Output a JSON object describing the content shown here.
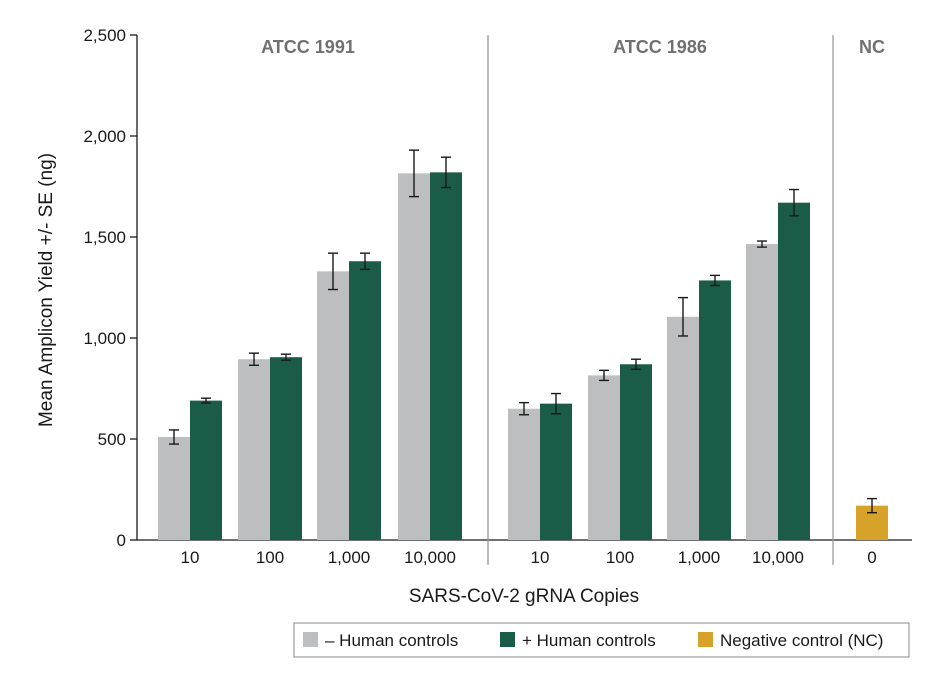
{
  "chart_data": {
    "type": "bar",
    "ylabel": "Mean Amplicon Yield +/- SE (ng)",
    "xlabel": "SARS-CoV-2 gRNA Copies",
    "ylim": [
      0,
      2500
    ],
    "yticks": [
      0,
      500,
      1000,
      1500,
      2000,
      2500
    ],
    "ytick_labels": [
      "0",
      "500",
      "1,000",
      "1,500",
      "2,000",
      "2,500"
    ],
    "grid": false,
    "legend_position": "bottom-right",
    "colors": {
      "minus_human": "#bdbec0",
      "plus_human": "#1b5c48",
      "negative": "#d7a22a",
      "separator": "#9a9a9a",
      "group_title": "#707070"
    },
    "legend": [
      {
        "key": "minus_human",
        "label": "– Human controls"
      },
      {
        "key": "plus_human",
        "label": "+ Human controls"
      },
      {
        "key": "negative",
        "label": "Negative control (NC)"
      }
    ],
    "groups": [
      {
        "title": "ATCC 1991",
        "categories": [
          "10",
          "100",
          "1,000",
          "10,000"
        ],
        "series": [
          {
            "key": "minus_human",
            "values": [
              510,
              895,
              1330,
              1815
            ],
            "errors": [
              35,
              30,
              90,
              115
            ]
          },
          {
            "key": "plus_human",
            "values": [
              690,
              905,
              1380,
              1820
            ],
            "errors": [
              12,
              15,
              40,
              75
            ]
          }
        ]
      },
      {
        "title": "ATCC 1986",
        "categories": [
          "10",
          "100",
          "1,000",
          "10,000"
        ],
        "series": [
          {
            "key": "minus_human",
            "values": [
              650,
              815,
              1105,
              1465
            ],
            "errors": [
              30,
              25,
              95,
              15
            ]
          },
          {
            "key": "plus_human",
            "values": [
              675,
              870,
              1285,
              1670
            ],
            "errors": [
              50,
              25,
              25,
              65
            ]
          }
        ]
      },
      {
        "title": "NC",
        "categories": [
          "0"
        ],
        "series": [
          {
            "key": "negative",
            "values": [
              170
            ],
            "errors": [
              35
            ]
          }
        ]
      }
    ]
  }
}
